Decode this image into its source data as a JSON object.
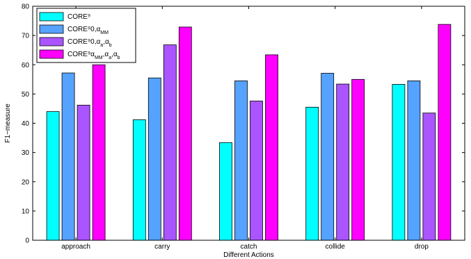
{
  "chart_data": {
    "type": "bar",
    "categories": [
      "approach",
      "carry",
      "catch",
      "collide",
      "drop"
    ],
    "series": [
      {
        "name": "CORE⁹",
        "color": "#00ffff",
        "values": [
          44,
          41.2,
          33.4,
          45.5,
          53.3
        ]
      },
      {
        "name": "CORE⁹0,α_MM",
        "color": "#55a2ff",
        "values": [
          57.2,
          55.5,
          54.5,
          57.1,
          54.5
        ]
      },
      {
        "name": "CORE⁹0,α_a,α_b",
        "color": "#aa55ff",
        "values": [
          46.2,
          66.8,
          47.6,
          53.4,
          43.5
        ]
      },
      {
        "name": "CORE⁹α_MM,α_a,α_b",
        "color": "#ff00ff",
        "values": [
          60,
          72.9,
          63.4,
          55,
          73.8
        ]
      }
    ],
    "xlabel": "Different Actions",
    "ylabel": "F1−measure",
    "ylim": [
      0,
      80
    ],
    "yticks": [
      "0",
      "10",
      "20",
      "30",
      "40",
      "50",
      "60",
      "70",
      "80"
    ],
    "legend_position": "top-left",
    "grid": false
  }
}
